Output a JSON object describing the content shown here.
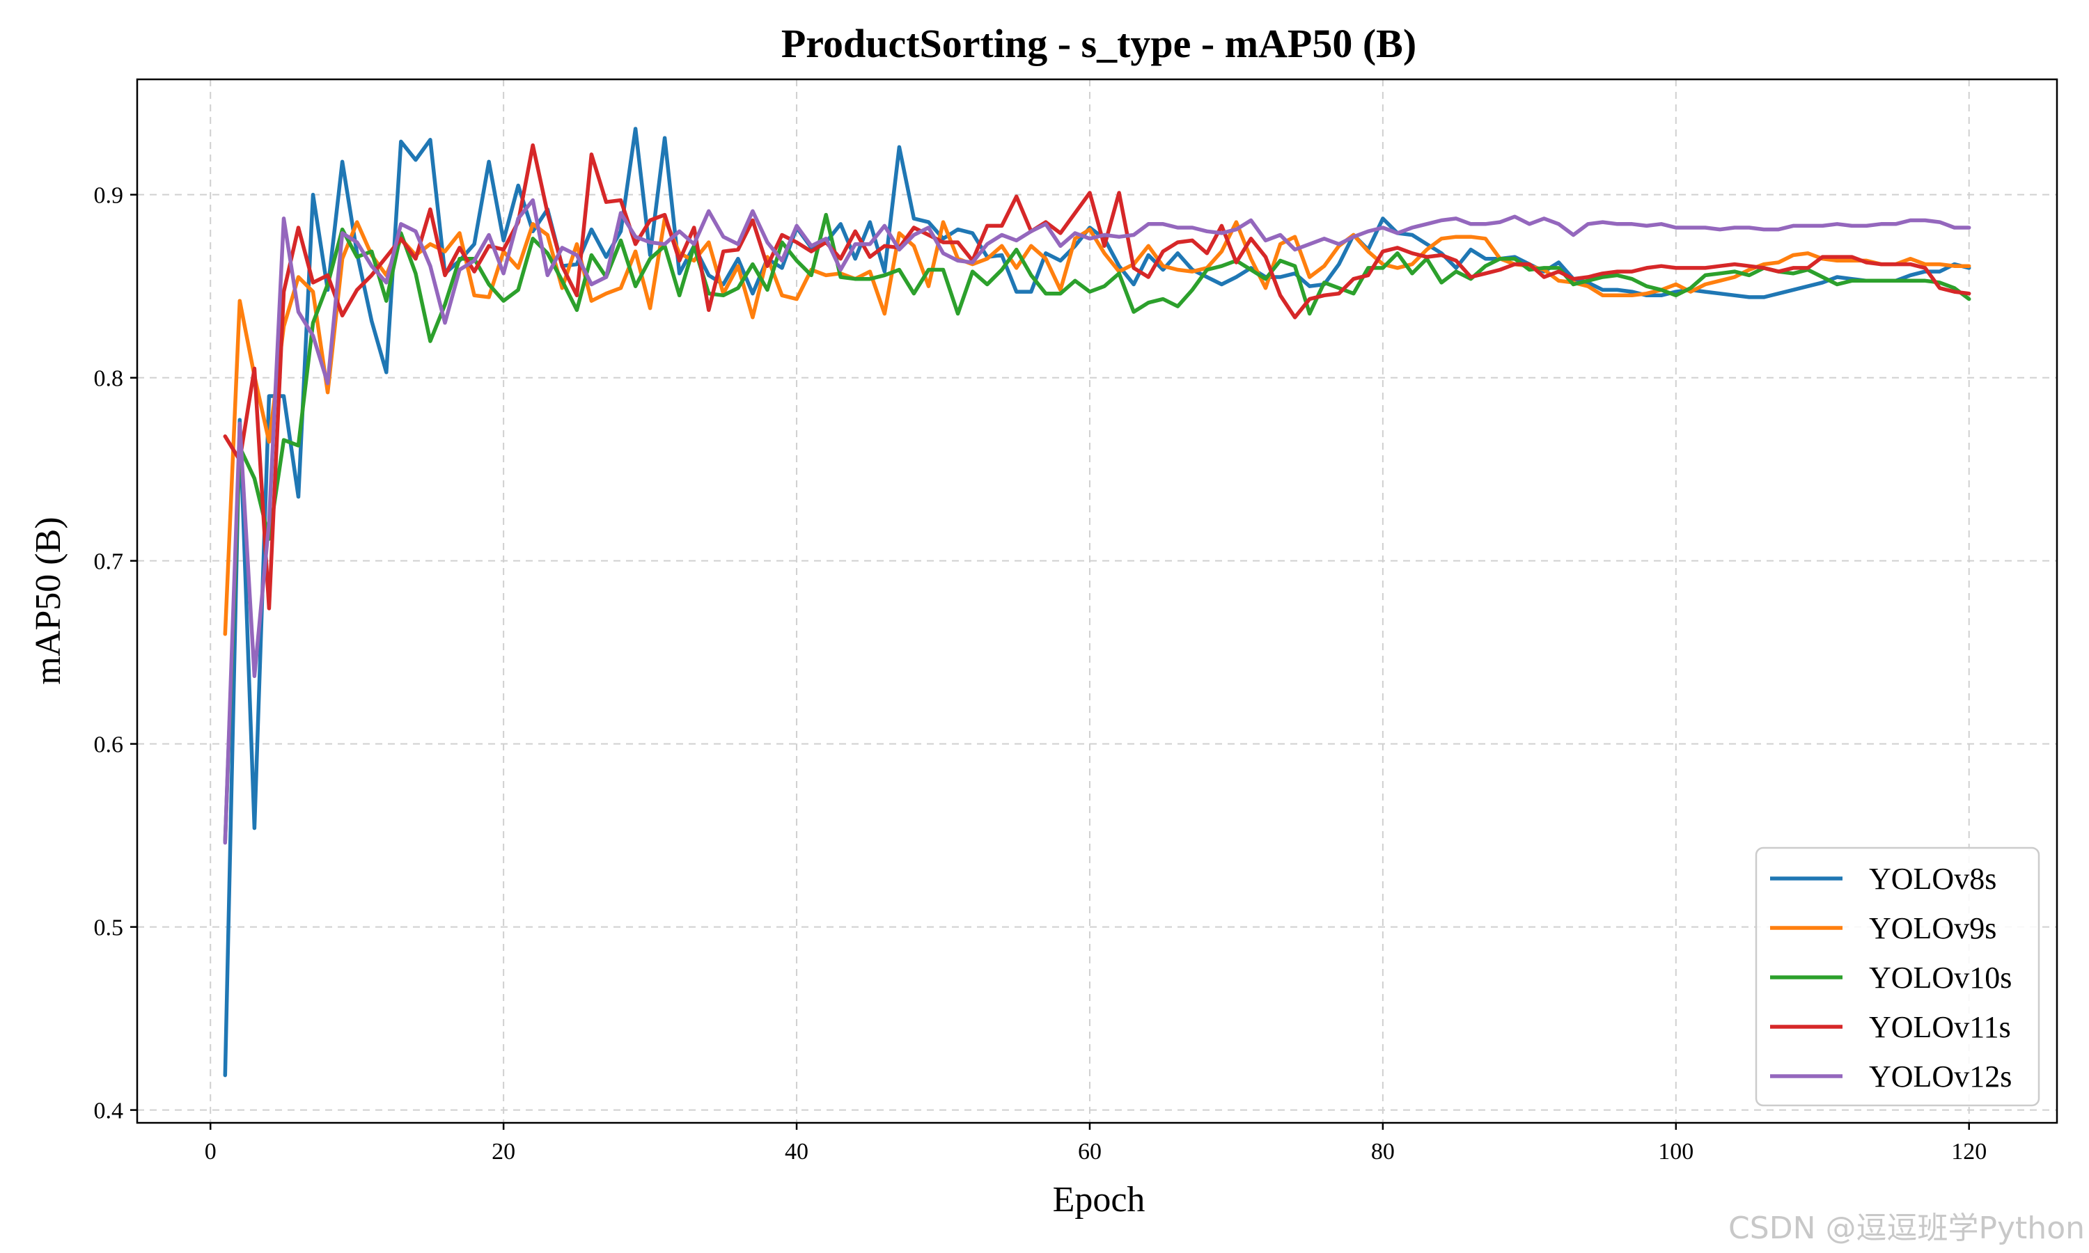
{
  "chart_data": {
    "type": "line",
    "title": "ProductSorting - s_type - mAP50 (B)",
    "xlabel": "Epoch",
    "ylabel": "mAP50 (B)",
    "xlim": [
      -5.0,
      126.0
    ],
    "ylim": [
      0.393,
      0.963
    ],
    "xticks": [
      0,
      20,
      40,
      60,
      80,
      100,
      120
    ],
    "xtick_labels": [
      "0",
      "20",
      "40",
      "60",
      "80",
      "100",
      "120"
    ],
    "yticks": [
      0.4,
      0.5,
      0.6,
      0.7,
      0.8,
      0.9
    ],
    "ytick_labels": [
      "0.4",
      "0.5",
      "0.6",
      "0.7",
      "0.8",
      "0.9"
    ],
    "grid": true,
    "legend_position": "lower-right",
    "x": [
      1,
      2,
      3,
      4,
      5,
      6,
      7,
      8,
      9,
      10,
      11,
      12,
      13,
      14,
      15,
      16,
      17,
      18,
      19,
      20,
      21,
      22,
      23,
      24,
      25,
      26,
      27,
      28,
      29,
      30,
      31,
      32,
      33,
      34,
      35,
      36,
      37,
      38,
      39,
      40,
      41,
      42,
      43,
      44,
      45,
      46,
      47,
      48,
      49,
      50,
      51,
      52,
      53,
      54,
      55,
      56,
      57,
      58,
      59,
      60,
      61,
      62,
      63,
      64,
      65,
      66,
      67,
      68,
      69,
      70,
      71,
      72,
      73,
      74,
      75,
      76,
      77,
      78,
      79,
      80,
      81,
      82,
      83,
      84,
      85,
      86,
      87,
      88,
      89,
      90,
      91,
      92,
      93,
      94,
      95,
      96,
      97,
      98,
      99,
      100,
      101,
      102,
      103,
      104,
      105,
      106,
      107,
      108,
      109,
      110,
      111,
      112,
      113,
      114,
      115,
      116,
      117,
      118,
      119,
      120
    ],
    "series": [
      {
        "name": "YOLOv8s",
        "color": "#1f77b4",
        "values": [
          0.419,
          0.777,
          0.554,
          0.79,
          0.79,
          0.735,
          0.9,
          0.848,
          0.918,
          0.868,
          0.831,
          0.803,
          0.929,
          0.919,
          0.93,
          0.857,
          0.864,
          0.873,
          0.918,
          0.875,
          0.905,
          0.88,
          0.892,
          0.861,
          0.862,
          0.881,
          0.866,
          0.88,
          0.936,
          0.867,
          0.931,
          0.857,
          0.872,
          0.856,
          0.851,
          0.865,
          0.846,
          0.865,
          0.86,
          0.882,
          0.871,
          0.874,
          0.884,
          0.865,
          0.885,
          0.858,
          0.926,
          0.887,
          0.885,
          0.876,
          0.881,
          0.879,
          0.866,
          0.867,
          0.847,
          0.847,
          0.868,
          0.864,
          0.872,
          0.882,
          0.876,
          0.861,
          0.851,
          0.867,
          0.859,
          0.868,
          0.859,
          0.855,
          0.851,
          0.855,
          0.86,
          0.855,
          0.855,
          0.857,
          0.85,
          0.851,
          0.862,
          0.878,
          0.87,
          0.887,
          0.879,
          0.878,
          0.873,
          0.868,
          0.86,
          0.87,
          0.865,
          0.865,
          0.866,
          0.862,
          0.858,
          0.863,
          0.854,
          0.852,
          0.848,
          0.848,
          0.847,
          0.845,
          0.845,
          0.847,
          0.848,
          0.847,
          0.846,
          0.845,
          0.844,
          0.844,
          0.846,
          0.848,
          0.85,
          0.852,
          0.855,
          0.854,
          0.853,
          0.853,
          0.853,
          0.856,
          0.858,
          0.858,
          0.862,
          0.86
        ]
      },
      {
        "name": "YOLOv9s",
        "color": "#ff7f0e",
        "values": [
          0.66,
          0.842,
          0.801,
          0.765,
          0.828,
          0.855,
          0.847,
          0.792,
          0.865,
          0.885,
          0.867,
          0.856,
          0.876,
          0.867,
          0.873,
          0.869,
          0.879,
          0.845,
          0.844,
          0.869,
          0.86,
          0.884,
          0.878,
          0.849,
          0.873,
          0.842,
          0.846,
          0.849,
          0.869,
          0.838,
          0.887,
          0.868,
          0.864,
          0.874,
          0.846,
          0.861,
          0.833,
          0.866,
          0.845,
          0.843,
          0.859,
          0.856,
          0.857,
          0.854,
          0.858,
          0.835,
          0.879,
          0.872,
          0.85,
          0.885,
          0.865,
          0.862,
          0.865,
          0.872,
          0.86,
          0.872,
          0.865,
          0.848,
          0.876,
          0.881,
          0.868,
          0.858,
          0.862,
          0.872,
          0.861,
          0.859,
          0.858,
          0.86,
          0.869,
          0.885,
          0.865,
          0.849,
          0.873,
          0.877,
          0.855,
          0.861,
          0.872,
          0.878,
          0.869,
          0.862,
          0.86,
          0.862,
          0.87,
          0.876,
          0.877,
          0.877,
          0.876,
          0.865,
          0.862,
          0.861,
          0.859,
          0.853,
          0.852,
          0.85,
          0.845,
          0.845,
          0.845,
          0.846,
          0.848,
          0.851,
          0.847,
          0.851,
          0.853,
          0.855,
          0.859,
          0.862,
          0.863,
          0.867,
          0.868,
          0.865,
          0.864,
          0.864,
          0.864,
          0.862,
          0.862,
          0.865,
          0.862,
          0.862,
          0.861,
          0.861
        ]
      },
      {
        "name": "YOLOv10s",
        "color": "#2ca02c",
        "values": [
          0.547,
          0.762,
          0.745,
          0.712,
          0.766,
          0.763,
          0.83,
          0.851,
          0.881,
          0.866,
          0.869,
          0.842,
          0.879,
          0.857,
          0.82,
          0.84,
          0.865,
          0.865,
          0.851,
          0.842,
          0.848,
          0.876,
          0.868,
          0.853,
          0.837,
          0.867,
          0.855,
          0.875,
          0.85,
          0.865,
          0.872,
          0.845,
          0.872,
          0.846,
          0.845,
          0.849,
          0.862,
          0.848,
          0.874,
          0.864,
          0.856,
          0.889,
          0.855,
          0.854,
          0.854,
          0.856,
          0.859,
          0.846,
          0.859,
          0.859,
          0.835,
          0.858,
          0.851,
          0.859,
          0.87,
          0.856,
          0.846,
          0.846,
          0.853,
          0.847,
          0.85,
          0.857,
          0.836,
          0.841,
          0.843,
          0.839,
          0.848,
          0.859,
          0.861,
          0.864,
          0.859,
          0.854,
          0.864,
          0.861,
          0.835,
          0.852,
          0.849,
          0.846,
          0.86,
          0.86,
          0.868,
          0.857,
          0.865,
          0.852,
          0.858,
          0.854,
          0.861,
          0.865,
          0.865,
          0.859,
          0.86,
          0.86,
          0.851,
          0.853,
          0.855,
          0.856,
          0.854,
          0.85,
          0.848,
          0.845,
          0.849,
          0.856,
          0.857,
          0.858,
          0.856,
          0.86,
          0.858,
          0.857,
          0.859,
          0.855,
          0.851,
          0.853,
          0.853,
          0.853,
          0.853,
          0.853,
          0.853,
          0.852,
          0.849,
          0.843
        ]
      },
      {
        "name": "YOLOv11s",
        "color": "#d62728",
        "values": [
          0.768,
          0.755,
          0.805,
          0.674,
          0.847,
          0.882,
          0.852,
          0.856,
          0.834,
          0.848,
          0.856,
          0.866,
          0.876,
          0.865,
          0.892,
          0.856,
          0.871,
          0.858,
          0.872,
          0.87,
          0.885,
          0.927,
          0.89,
          0.861,
          0.845,
          0.922,
          0.896,
          0.897,
          0.873,
          0.886,
          0.889,
          0.864,
          0.882,
          0.837,
          0.869,
          0.87,
          0.886,
          0.861,
          0.878,
          0.874,
          0.869,
          0.874,
          0.865,
          0.88,
          0.866,
          0.872,
          0.871,
          0.882,
          0.878,
          0.874,
          0.874,
          0.864,
          0.883,
          0.883,
          0.899,
          0.88,
          0.885,
          0.879,
          0.89,
          0.901,
          0.872,
          0.901,
          0.86,
          0.855,
          0.869,
          0.874,
          0.875,
          0.868,
          0.883,
          0.863,
          0.876,
          0.866,
          0.845,
          0.833,
          0.843,
          0.845,
          0.846,
          0.854,
          0.856,
          0.869,
          0.871,
          0.868,
          0.866,
          0.867,
          0.864,
          0.855,
          0.857,
          0.859,
          0.862,
          0.862,
          0.855,
          0.858,
          0.854,
          0.855,
          0.857,
          0.858,
          0.858,
          0.86,
          0.861,
          0.86,
          0.86,
          0.86,
          0.861,
          0.862,
          0.861,
          0.86,
          0.858,
          0.86,
          0.86,
          0.866,
          0.866,
          0.866,
          0.863,
          0.862,
          0.862,
          0.862,
          0.86,
          0.849,
          0.847,
          0.846
        ]
      },
      {
        "name": "YOLOv12s",
        "color": "#9467bd",
        "values": [
          0.546,
          0.775,
          0.637,
          0.721,
          0.887,
          0.836,
          0.823,
          0.797,
          0.879,
          0.874,
          0.861,
          0.852,
          0.884,
          0.88,
          0.861,
          0.83,
          0.859,
          0.864,
          0.878,
          0.857,
          0.887,
          0.897,
          0.856,
          0.871,
          0.867,
          0.851,
          0.855,
          0.89,
          0.877,
          0.874,
          0.873,
          0.88,
          0.873,
          0.891,
          0.877,
          0.873,
          0.891,
          0.874,
          0.864,
          0.883,
          0.872,
          0.876,
          0.859,
          0.873,
          0.873,
          0.883,
          0.87,
          0.878,
          0.882,
          0.868,
          0.864,
          0.863,
          0.873,
          0.878,
          0.875,
          0.88,
          0.884,
          0.872,
          0.879,
          0.876,
          0.878,
          0.877,
          0.878,
          0.884,
          0.884,
          0.882,
          0.882,
          0.88,
          0.879,
          0.881,
          0.886,
          0.875,
          0.878,
          0.87,
          0.873,
          0.876,
          0.873,
          0.877,
          0.88,
          0.882,
          0.879,
          0.882,
          0.884,
          0.886,
          0.887,
          0.884,
          0.884,
          0.885,
          0.888,
          0.884,
          0.887,
          0.884,
          0.878,
          0.884,
          0.885,
          0.884,
          0.884,
          0.883,
          0.884,
          0.882,
          0.882,
          0.882,
          0.881,
          0.882,
          0.882,
          0.881,
          0.881,
          0.883,
          0.883,
          0.883,
          0.884,
          0.883,
          0.883,
          0.884,
          0.884,
          0.886,
          0.886,
          0.885,
          0.882,
          0.882
        ]
      }
    ]
  },
  "watermark": "CSDN @逗逗班学Python"
}
